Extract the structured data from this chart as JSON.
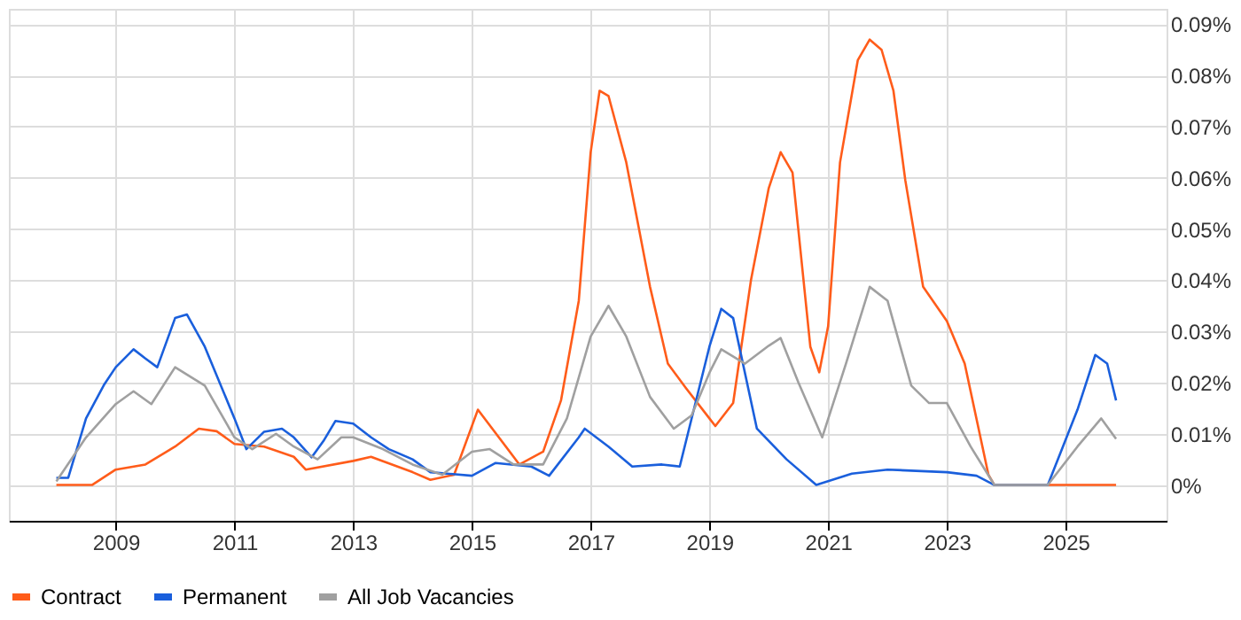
{
  "chart_data": {
    "type": "line",
    "xlim": [
      2007.2,
      2026.7
    ],
    "xticks": [
      2009,
      2011,
      2013,
      2015,
      2017,
      2019,
      2021,
      2023,
      2025
    ],
    "ylim": [
      -0.007,
      0.093
    ],
    "yticks": [
      {
        "value": 0,
        "label": "0%"
      },
      {
        "value": 0.01,
        "label": "0.01%"
      },
      {
        "value": 0.02,
        "label": "0.02%"
      },
      {
        "value": 0.03,
        "label": "0.03%"
      },
      {
        "value": 0.04,
        "label": "0.04%"
      },
      {
        "value": 0.05,
        "label": "0.05%"
      },
      {
        "value": 0.06,
        "label": "0.06%"
      },
      {
        "value": 0.07,
        "label": "0.07%"
      },
      {
        "value": 0.08,
        "label": "0.08%"
      },
      {
        "value": 0.09,
        "label": "0.09%"
      }
    ],
    "grid": true,
    "legend": "bottom",
    "marker": "none",
    "line_style": "solid",
    "series": [
      {
        "name": "Contract",
        "color": "#ff5c1a",
        "x": [
          2008,
          2008.6,
          2009,
          2009.5,
          2010,
          2010.4,
          2010.7,
          2011,
          2011.5,
          2012,
          2012.2,
          2013,
          2013.3,
          2014,
          2014.3,
          2014.7,
          2015.1,
          2015.8,
          2016.2,
          2016.5,
          2016.8,
          2017,
          2017.15,
          2017.3,
          2017.6,
          2018,
          2018.3,
          2018.6,
          2019,
          2019.1,
          2019.4,
          2019.7,
          2020,
          2020.2,
          2020.4,
          2020.7,
          2020.85,
          2021,
          2021.2,
          2021.5,
          2021.7,
          2021.9,
          2022.1,
          2022.3,
          2022.6,
          2023,
          2023.3,
          2023.7,
          2023.8,
          2025.85
        ],
        "values": [
          0,
          0,
          0.003,
          0.004,
          0.0075,
          0.011,
          0.0105,
          0.008,
          0.0075,
          0.0055,
          0.003,
          0.0047,
          0.0055,
          0.0025,
          0.001,
          0.002,
          0.0147,
          0.004,
          0.0065,
          0.0165,
          0.036,
          0.065,
          0.077,
          0.076,
          0.063,
          0.0387,
          0.0237,
          0.019,
          0.013,
          0.0115,
          0.016,
          0.04,
          0.058,
          0.065,
          0.061,
          0.027,
          0.022,
          0.031,
          0.063,
          0.083,
          0.087,
          0.085,
          0.077,
          0.0595,
          0.0387,
          0.032,
          0.0237,
          0.002,
          0,
          0
        ]
      },
      {
        "name": "Permanent",
        "color": "#1a5fdc",
        "x": [
          2008,
          2008.2,
          2008.5,
          2008.8,
          2009,
          2009.3,
          2009.5,
          2009.7,
          2010,
          2010.2,
          2010.5,
          2011,
          2011.2,
          2011.5,
          2011.8,
          2012,
          2012.3,
          2012.5,
          2012.7,
          2013,
          2013.3,
          2013.6,
          2014,
          2014.3,
          2015,
          2015.4,
          2016,
          2016.3,
          2016.8,
          2016.9,
          2017.3,
          2017.7,
          2018.2,
          2018.5,
          2019,
          2019.2,
          2019.4,
          2019.8,
          2020.3,
          2020.8,
          2021.4,
          2022,
          2023,
          2023.5,
          2023.8,
          2024.7,
          2025.2,
          2025.5,
          2025.7,
          2025.85
        ],
        "values": [
          0.0014,
          0.0014,
          0.013,
          0.0195,
          0.023,
          0.0265,
          0.0247,
          0.023,
          0.0326,
          0.0333,
          0.027,
          0.013,
          0.007,
          0.0104,
          0.011,
          0.0093,
          0.0054,
          0.0086,
          0.0125,
          0.012,
          0.0093,
          0.007,
          0.005,
          0.0025,
          0.0018,
          0.0043,
          0.0036,
          0.0018,
          0.0093,
          0.011,
          0.0075,
          0.0036,
          0.004,
          0.0036,
          0.027,
          0.0344,
          0.0326,
          0.011,
          0.005,
          0,
          0.0022,
          0.003,
          0.0025,
          0.0018,
          0,
          0,
          0.0147,
          0.0254,
          0.0237,
          0.0165
        ]
      },
      {
        "name": "All Job Vacancies",
        "color": "#a0a0a0",
        "x": [
          2008,
          2008.5,
          2009,
          2009.3,
          2009.6,
          2010,
          2010.5,
          2011,
          2011.3,
          2011.7,
          2012,
          2012.4,
          2012.8,
          2013,
          2013.5,
          2014,
          2014.5,
          2015,
          2015.3,
          2015.7,
          2016.2,
          2016.6,
          2017,
          2017.3,
          2017.6,
          2018,
          2018.4,
          2018.7,
          2019,
          2019.2,
          2019.6,
          2020,
          2020.2,
          2020.5,
          2020.9,
          2021.3,
          2021.7,
          2022,
          2022.4,
          2022.7,
          2023,
          2023.4,
          2023.8,
          2024.7,
          2025.2,
          2025.6,
          2025.85
        ],
        "values": [
          0.0007,
          0.0093,
          0.0158,
          0.0183,
          0.0158,
          0.023,
          0.0194,
          0.0093,
          0.007,
          0.01,
          0.0075,
          0.005,
          0.0093,
          0.0093,
          0.007,
          0.004,
          0.002,
          0.0065,
          0.007,
          0.004,
          0.004,
          0.013,
          0.029,
          0.035,
          0.029,
          0.0172,
          0.011,
          0.0136,
          0.0219,
          0.0265,
          0.0237,
          0.0272,
          0.0287,
          0.02,
          0.0093,
          0.0237,
          0.0387,
          0.036,
          0.0194,
          0.016,
          0.016,
          0.0075,
          0,
          0,
          0.0075,
          0.013,
          0.009
        ]
      }
    ]
  }
}
